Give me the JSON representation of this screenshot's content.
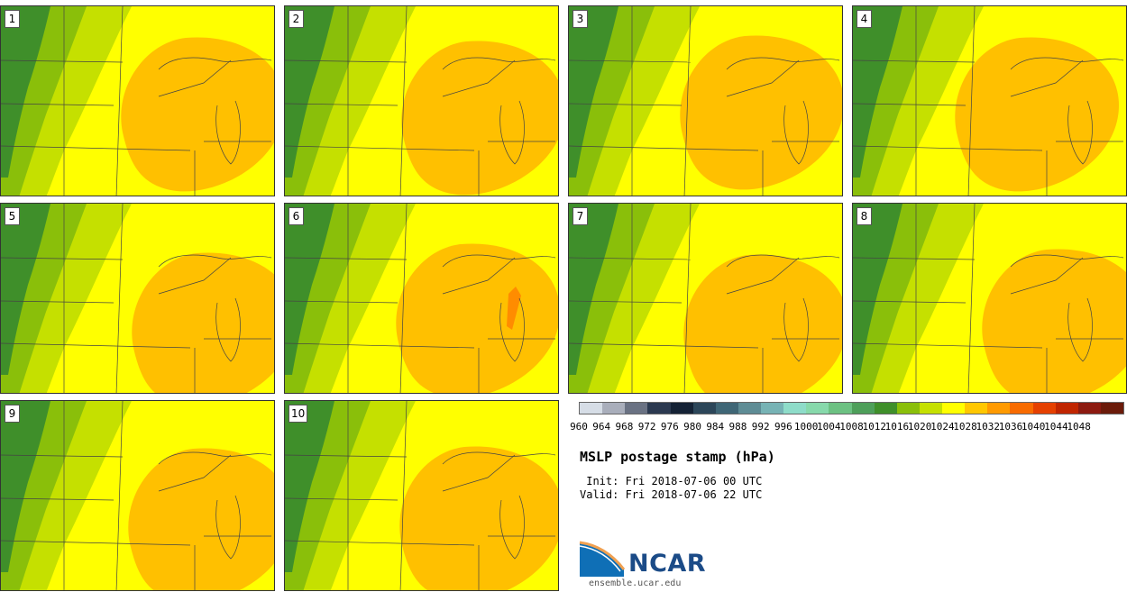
{
  "panels": [
    {
      "label": "1"
    },
    {
      "label": "2"
    },
    {
      "label": "3"
    },
    {
      "label": "4"
    },
    {
      "label": "5"
    },
    {
      "label": "6"
    },
    {
      "label": "7"
    },
    {
      "label": "8"
    },
    {
      "label": "9"
    },
    {
      "label": "10"
    }
  ],
  "colorbar": {
    "colors": [
      "#d6dde6",
      "#a9aebb",
      "#6a7283",
      "#2b3950",
      "#142235",
      "#2c4659",
      "#3f6676",
      "#5e8c95",
      "#77b3b5",
      "#8edcc9",
      "#87d9ab",
      "#6cc182",
      "#4e9f5a",
      "#3f8f2a",
      "#8abf0a",
      "#c5e000",
      "#ffff00",
      "#ffc700",
      "#ff9a00",
      "#f86b00",
      "#e54000",
      "#c02500",
      "#8c1a10",
      "#6b1b0a"
    ],
    "labels": [
      "960",
      "964",
      "968",
      "972",
      "976",
      "980",
      "984",
      "988",
      "992",
      "996",
      "1000",
      "1004",
      "1008",
      "1012",
      "1016",
      "1020",
      "1024",
      "1028",
      "1032",
      "1036",
      "1040",
      "1044",
      "1048"
    ]
  },
  "title": "MSLP postage stamp (hPa)",
  "init": " Init: Fri 2018-07-06 00 UTC",
  "valid": "Valid: Fri 2018-07-06 22 UTC",
  "logo": {
    "text": "NCAR",
    "url": "ensemble.ucar.edu"
  }
}
